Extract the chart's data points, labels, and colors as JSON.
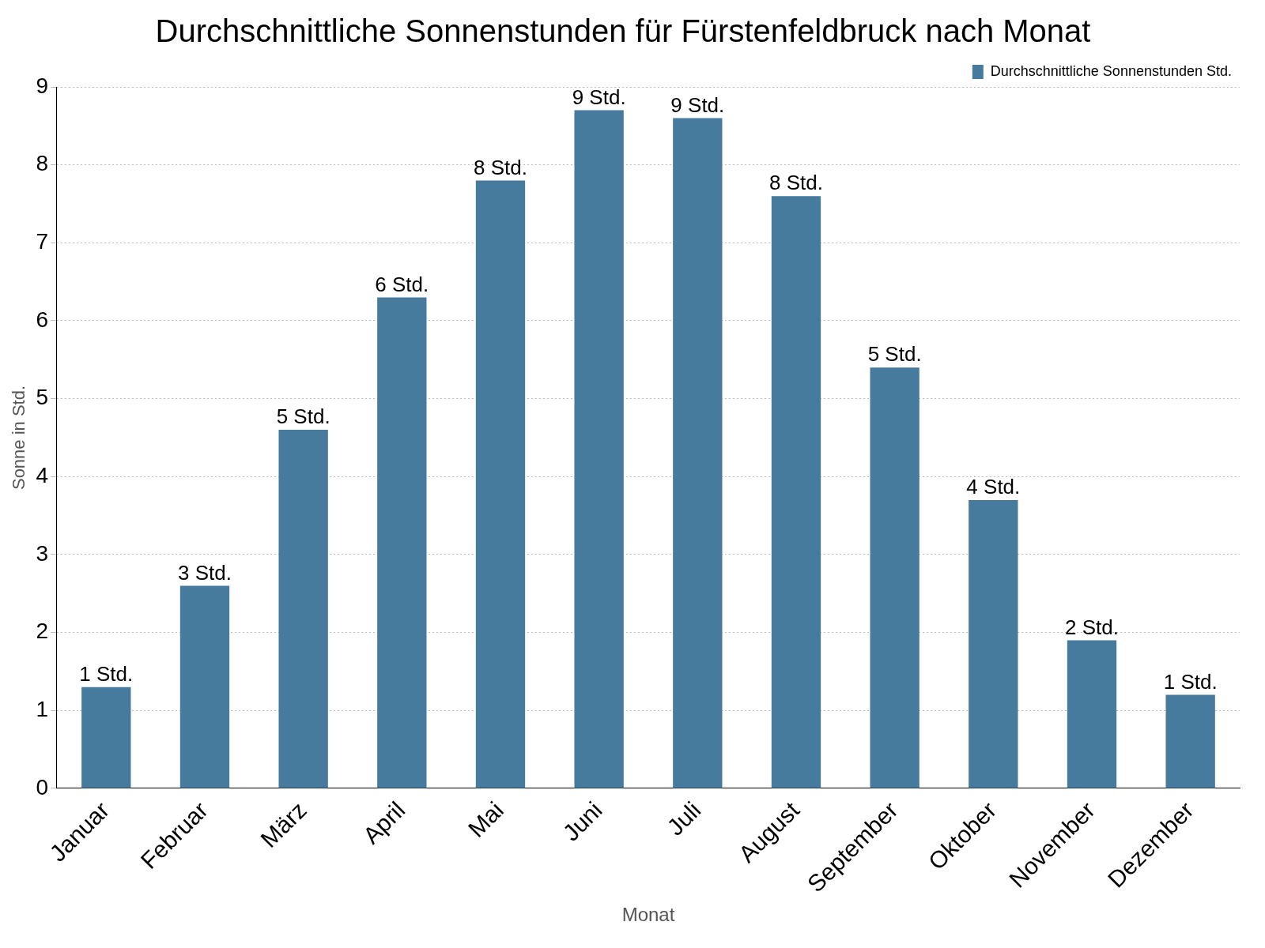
{
  "chart_data": {
    "type": "bar",
    "title": "Durchschnittliche Sonnenstunden für Fürstenfeldbruck nach Monat",
    "xlabel": "Monat",
    "ylabel": "Sonne in Std.",
    "categories": [
      "Januar",
      "Februar",
      "März",
      "April",
      "Mai",
      "Juni",
      "Juli",
      "August",
      "September",
      "Oktober",
      "November",
      "Dezember"
    ],
    "series": [
      {
        "name": "Durchschnittliche Sonnenstunden Std.",
        "color": "#467b9e",
        "values": [
          1.3,
          2.6,
          4.6,
          6.3,
          7.8,
          8.7,
          8.6,
          7.6,
          5.4,
          3.7,
          1.9,
          1.2
        ],
        "value_labels": [
          "1 Std.",
          "3 Std.",
          "5 Std.",
          "6 Std.",
          "8 Std.",
          "9 Std.",
          "9 Std.",
          "8 Std.",
          "5 Std.",
          "4 Std.",
          "2 Std.",
          "1 Std."
        ]
      }
    ],
    "ylim": [
      0,
      9
    ],
    "yticks": [
      0,
      1,
      2,
      3,
      4,
      5,
      6,
      7,
      8,
      9
    ],
    "grid": "y",
    "legend": "top right"
  }
}
